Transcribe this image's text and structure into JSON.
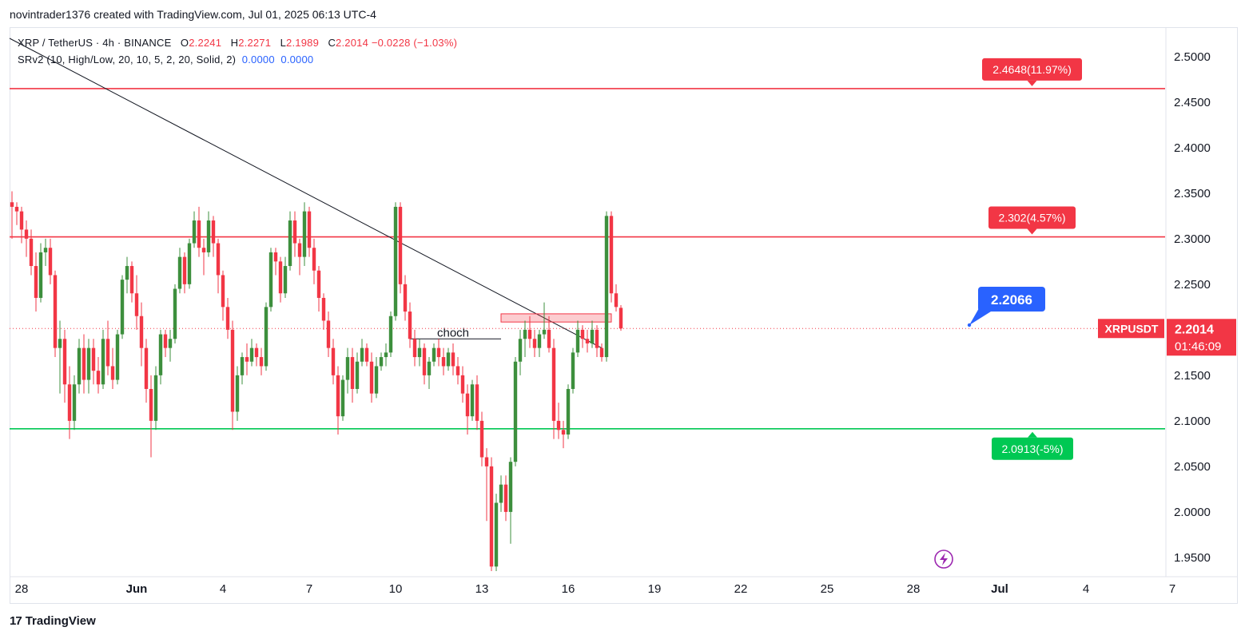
{
  "header": {
    "text": "novintrader1376 created with TradingView.com, Jul 01, 2025 06:13 UTC-4"
  },
  "legend": {
    "symbol": "XRP / TetherUS · 4h · BINANCE",
    "o_label": "O",
    "o": "2.2241",
    "h_label": "H",
    "h": "2.2271",
    "l_label": "L",
    "l": "2.1989",
    "c_label": "C",
    "c": "2.2014",
    "change": "−0.0228 (−1.03%)",
    "indicator": "SRv2 (10, High/Low, 20, 10, 5, 2, 20, Solid, 2)",
    "ind_v1": "0.0000",
    "ind_v2": "0.0000"
  },
  "brand": {
    "logo": "17",
    "name": "TradingView"
  },
  "colors": {
    "up": "#26a69a",
    "down": "#f23645",
    "up_body": "#3d8f3d",
    "support": "#00e676",
    "resistance": "#f23645",
    "accent": "#2962ff"
  },
  "chart_data": {
    "type": "candlestick",
    "symbol": "XRPUSDT",
    "timeframe": "4h",
    "ylim": [
      1.935,
      2.52
    ],
    "y_ticks": [
      "2.5000",
      "2.4500",
      "2.4000",
      "2.3500",
      "2.3000",
      "2.2500",
      "2.2000",
      "2.1500",
      "2.1000",
      "2.0500",
      "2.0000",
      "1.9500"
    ],
    "x_ticks": [
      "28",
      "Jun",
      "4",
      "7",
      "10",
      "13",
      "16",
      "19",
      "22",
      "25",
      "28",
      "Jul",
      "4",
      "7"
    ],
    "levels": [
      {
        "value": 2.4648,
        "label": "2.4648(11.97%)",
        "color": "#f23645"
      },
      {
        "value": 2.302,
        "label": "2.302(4.57%)",
        "color": "#f23645"
      },
      {
        "value": 2.0913,
        "label": "2.0913(-5%)",
        "color": "#00c853"
      }
    ],
    "target": {
      "value": 2.2066,
      "label": "2.2066"
    },
    "last_price": {
      "value": 2.2014,
      "symbol_label": "XRPUSDT",
      "price_label": "2.2014",
      "countdown": "01:46:09"
    },
    "annotations": [
      {
        "text": "choch",
        "value": 2.19
      }
    ],
    "resistance_zone": [
      2.2085,
      2.2175
    ],
    "trendline": [
      [
        0,
        2.52
      ],
      [
        123,
        2.18
      ]
    ],
    "x_dates": {
      "first_bar": "2025-05-27 12:00",
      "bars_per_day": 6
    },
    "candles": [
      [
        2.34,
        2.352,
        2.3,
        2.335
      ],
      [
        2.335,
        2.34,
        2.315,
        2.33
      ],
      [
        2.33,
        2.335,
        2.295,
        2.31
      ],
      [
        2.31,
        2.32,
        2.28,
        2.3
      ],
      [
        2.3,
        2.31,
        2.26,
        2.27
      ],
      [
        2.27,
        2.285,
        2.22,
        2.235
      ],
      [
        2.235,
        2.295,
        2.23,
        2.285
      ],
      [
        2.285,
        2.3,
        2.27,
        2.29
      ],
      [
        2.29,
        2.3,
        2.25,
        2.26
      ],
      [
        2.26,
        2.265,
        2.17,
        2.18
      ],
      [
        2.18,
        2.21,
        2.13,
        2.19
      ],
      [
        2.19,
        2.2,
        2.12,
        2.14
      ],
      [
        2.14,
        2.16,
        2.08,
        2.1
      ],
      [
        2.1,
        2.15,
        2.09,
        2.14
      ],
      [
        2.14,
        2.19,
        2.13,
        2.18
      ],
      [
        2.18,
        2.195,
        2.13,
        2.145
      ],
      [
        2.145,
        2.19,
        2.13,
        2.18
      ],
      [
        2.18,
        2.19,
        2.14,
        2.155
      ],
      [
        2.155,
        2.17,
        2.13,
        2.14
      ],
      [
        2.14,
        2.2,
        2.135,
        2.19
      ],
      [
        2.19,
        2.21,
        2.15,
        2.16
      ],
      [
        2.16,
        2.18,
        2.135,
        2.145
      ],
      [
        2.145,
        2.2,
        2.14,
        2.195
      ],
      [
        2.195,
        2.26,
        2.19,
        2.255
      ],
      [
        2.255,
        2.28,
        2.24,
        2.27
      ],
      [
        2.27,
        2.275,
        2.23,
        2.24
      ],
      [
        2.24,
        2.26,
        2.2,
        2.215
      ],
      [
        2.215,
        2.23,
        2.16,
        2.18
      ],
      [
        2.18,
        2.19,
        2.12,
        2.135
      ],
      [
        2.135,
        2.15,
        2.06,
        2.1
      ],
      [
        2.1,
        2.16,
        2.09,
        2.15
      ],
      [
        2.15,
        2.2,
        2.14,
        2.195
      ],
      [
        2.195,
        2.2,
        2.17,
        2.18
      ],
      [
        2.18,
        2.2,
        2.165,
        2.19
      ],
      [
        2.19,
        2.25,
        2.185,
        2.245
      ],
      [
        2.245,
        2.29,
        2.24,
        2.28
      ],
      [
        2.28,
        2.285,
        2.24,
        2.25
      ],
      [
        2.25,
        2.3,
        2.245,
        2.295
      ],
      [
        2.295,
        2.33,
        2.29,
        2.32
      ],
      [
        2.32,
        2.335,
        2.28,
        2.29
      ],
      [
        2.29,
        2.3,
        2.26,
        2.285
      ],
      [
        2.285,
        2.33,
        2.28,
        2.32
      ],
      [
        2.32,
        2.325,
        2.28,
        2.295
      ],
      [
        2.295,
        2.3,
        2.24,
        2.26
      ],
      [
        2.26,
        2.265,
        2.21,
        2.225
      ],
      [
        2.225,
        2.235,
        2.19,
        2.2
      ],
      [
        2.2,
        2.21,
        2.09,
        2.11
      ],
      [
        2.11,
        2.16,
        2.1,
        2.15
      ],
      [
        2.15,
        2.175,
        2.14,
        2.17
      ],
      [
        2.17,
        2.185,
        2.15,
        2.165
      ],
      [
        2.165,
        2.19,
        2.16,
        2.18
      ],
      [
        2.18,
        2.185,
        2.16,
        2.17
      ],
      [
        2.17,
        2.18,
        2.15,
        2.16
      ],
      [
        2.16,
        2.23,
        2.155,
        2.225
      ],
      [
        2.225,
        2.29,
        2.22,
        2.285
      ],
      [
        2.285,
        2.29,
        2.26,
        2.275
      ],
      [
        2.275,
        2.28,
        2.23,
        2.24
      ],
      [
        2.24,
        2.28,
        2.235,
        2.27
      ],
      [
        2.27,
        2.33,
        2.265,
        2.32
      ],
      [
        2.32,
        2.33,
        2.28,
        2.295
      ],
      [
        2.295,
        2.3,
        2.26,
        2.28
      ],
      [
        2.28,
        2.34,
        2.27,
        2.33
      ],
      [
        2.33,
        2.335,
        2.28,
        2.29
      ],
      [
        2.29,
        2.3,
        2.25,
        2.265
      ],
      [
        2.265,
        2.27,
        2.22,
        2.235
      ],
      [
        2.235,
        2.24,
        2.2,
        2.21
      ],
      [
        2.21,
        2.22,
        2.17,
        2.18
      ],
      [
        2.18,
        2.19,
        2.14,
        2.15
      ],
      [
        2.15,
        2.16,
        2.085,
        2.105
      ],
      [
        2.105,
        2.15,
        2.1,
        2.145
      ],
      [
        2.145,
        2.18,
        2.13,
        2.17
      ],
      [
        2.17,
        2.18,
        2.12,
        2.135
      ],
      [
        2.135,
        2.175,
        2.13,
        2.165
      ],
      [
        2.165,
        2.19,
        2.16,
        2.18
      ],
      [
        2.18,
        2.185,
        2.16,
        2.165
      ],
      [
        2.165,
        2.175,
        2.12,
        2.13
      ],
      [
        2.13,
        2.17,
        2.125,
        2.16
      ],
      [
        2.16,
        2.175,
        2.155,
        2.17
      ],
      [
        2.17,
        2.185,
        2.16,
        2.175
      ],
      [
        2.175,
        2.22,
        2.17,
        2.215
      ],
      [
        2.215,
        2.34,
        2.21,
        2.335
      ],
      [
        2.335,
        2.34,
        2.24,
        2.25
      ],
      [
        2.25,
        2.26,
        2.21,
        2.22
      ],
      [
        2.22,
        2.23,
        2.18,
        2.19
      ],
      [
        2.19,
        2.2,
        2.16,
        2.17
      ],
      [
        2.17,
        2.19,
        2.16,
        2.18
      ],
      [
        2.18,
        2.185,
        2.14,
        2.15
      ],
      [
        2.15,
        2.17,
        2.135,
        2.165
      ],
      [
        2.165,
        2.185,
        2.16,
        2.18
      ],
      [
        2.18,
        2.19,
        2.16,
        2.17
      ],
      [
        2.17,
        2.18,
        2.15,
        2.16
      ],
      [
        2.16,
        2.18,
        2.155,
        2.175
      ],
      [
        2.175,
        2.185,
        2.15,
        2.16
      ],
      [
        2.16,
        2.17,
        2.14,
        2.15
      ],
      [
        2.15,
        2.16,
        2.12,
        2.13
      ],
      [
        2.13,
        2.14,
        2.085,
        2.105
      ],
      [
        2.105,
        2.145,
        2.1,
        2.14
      ],
      [
        2.14,
        2.15,
        2.09,
        2.1
      ],
      [
        2.1,
        2.11,
        2.05,
        2.06
      ],
      [
        2.06,
        2.07,
        1.99,
        2.05
      ],
      [
        2.05,
        2.06,
        1.935,
        1.94
      ],
      [
        1.94,
        2.02,
        1.935,
        2.01
      ],
      [
        2.01,
        2.04,
        2.0,
        2.03
      ],
      [
        2.03,
        2.04,
        1.99,
        2.0
      ],
      [
        2.0,
        2.06,
        1.965,
        2.055
      ],
      [
        2.055,
        2.17,
        2.05,
        2.165
      ],
      [
        2.165,
        2.2,
        2.15,
        2.19
      ],
      [
        2.19,
        2.21,
        2.17,
        2.2
      ],
      [
        2.2,
        2.215,
        2.18,
        2.19
      ],
      [
        2.19,
        2.2,
        2.17,
        2.18
      ],
      [
        2.18,
        2.2,
        2.17,
        2.195
      ],
      [
        2.195,
        2.23,
        2.19,
        2.2
      ],
      [
        2.2,
        2.215,
        2.175,
        2.18
      ],
      [
        2.18,
        2.19,
        2.08,
        2.1
      ],
      [
        2.1,
        2.12,
        2.08,
        2.09
      ],
      [
        2.09,
        2.1,
        2.07,
        2.085
      ],
      [
        2.085,
        2.14,
        2.08,
        2.135
      ],
      [
        2.135,
        2.18,
        2.13,
        2.175
      ],
      [
        2.175,
        2.21,
        2.17,
        2.2
      ],
      [
        2.2,
        2.205,
        2.18,
        2.19
      ],
      [
        2.19,
        2.2,
        2.175,
        2.185
      ],
      [
        2.185,
        2.21,
        2.18,
        2.2
      ],
      [
        2.2,
        2.205,
        2.17,
        2.18
      ],
      [
        2.18,
        2.185,
        2.165,
        2.17
      ],
      [
        2.17,
        2.33,
        2.165,
        2.325
      ],
      [
        2.325,
        2.33,
        2.23,
        2.24
      ],
      [
        2.24,
        2.25,
        2.22,
        2.225
      ],
      [
        2.2241,
        2.2271,
        2.1989,
        2.2014
      ]
    ]
  }
}
